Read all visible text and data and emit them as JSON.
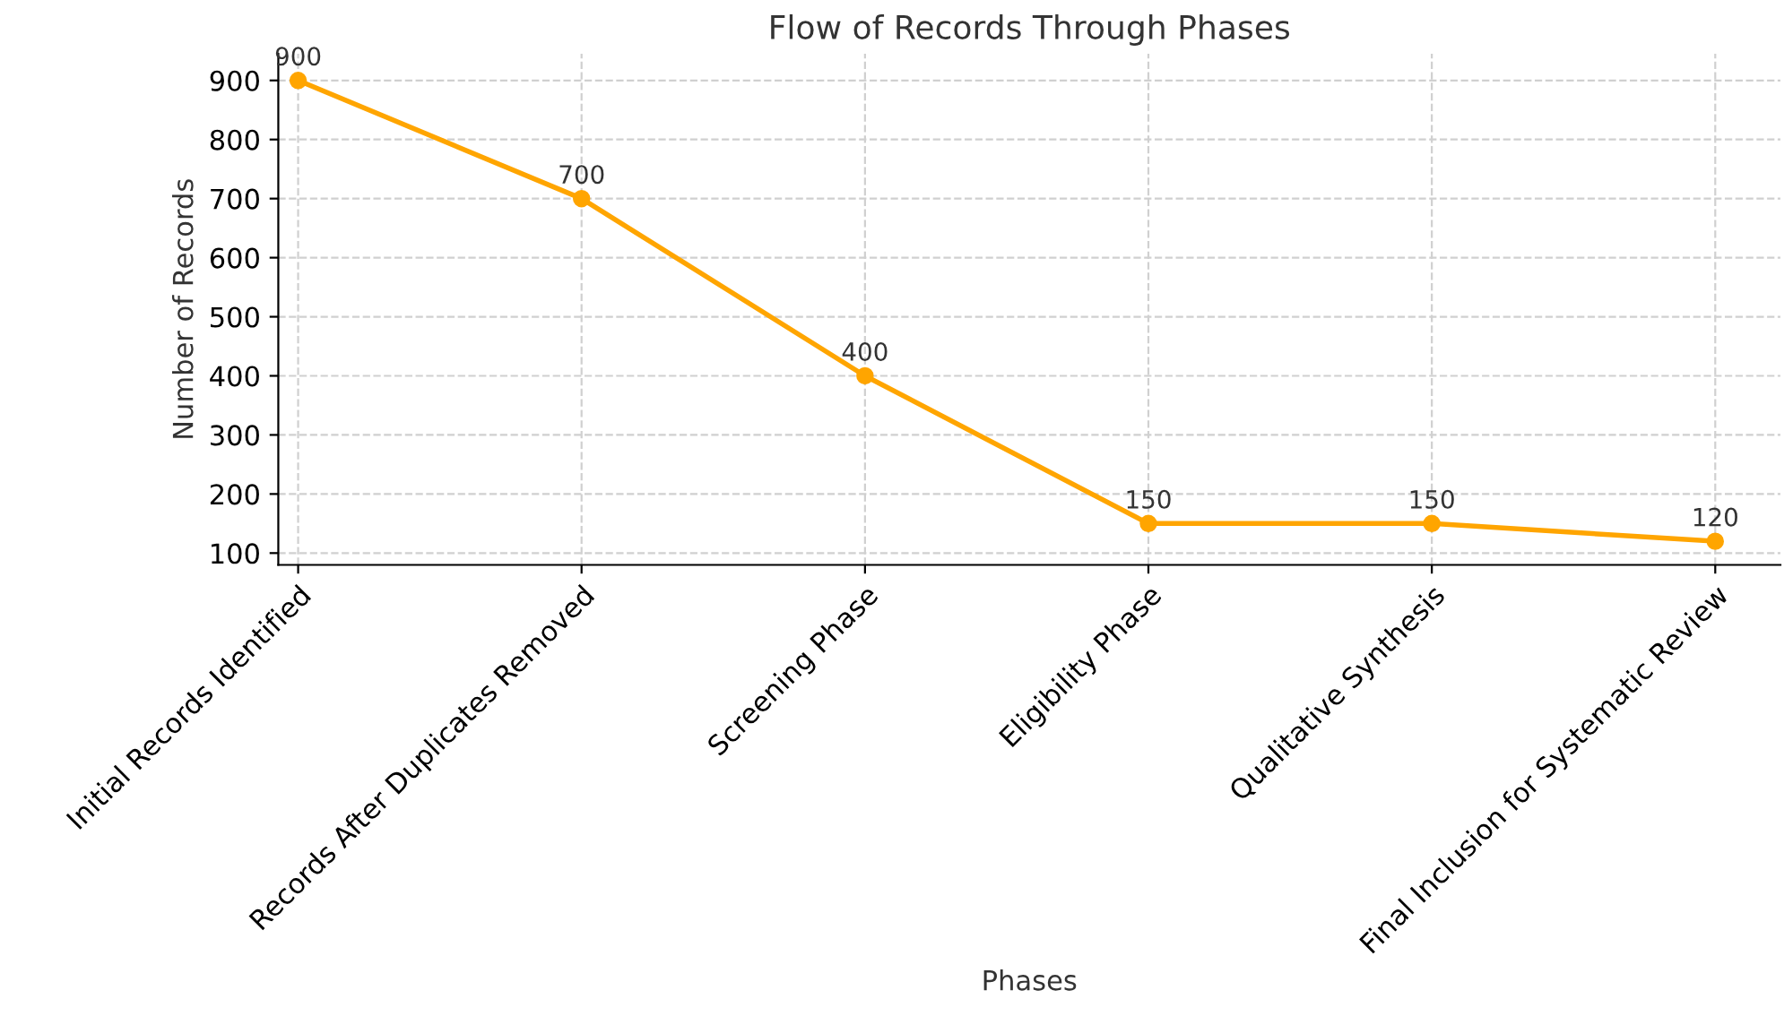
{
  "chart_data": {
    "type": "line",
    "title": "Flow of Records Through Phases",
    "xlabel": "Phases",
    "ylabel": "Number of Records",
    "categories": [
      "Initial Records Identified",
      "Records After Duplicates Removed",
      "Screening Phase",
      "Eligibility Phase",
      "Qualitative Synthesis",
      "Final Inclusion for Systematic Review"
    ],
    "series": [
      {
        "color": "#ffa500",
        "values": [
          900,
          700,
          400,
          150,
          150,
          120
        ]
      }
    ],
    "ylim": [
      80,
      945
    ],
    "yticks": [
      100,
      200,
      300,
      400,
      500,
      600,
      700,
      800,
      900
    ],
    "grid": true,
    "marker": "circle",
    "line_style": "solid",
    "data_labels": true
  }
}
